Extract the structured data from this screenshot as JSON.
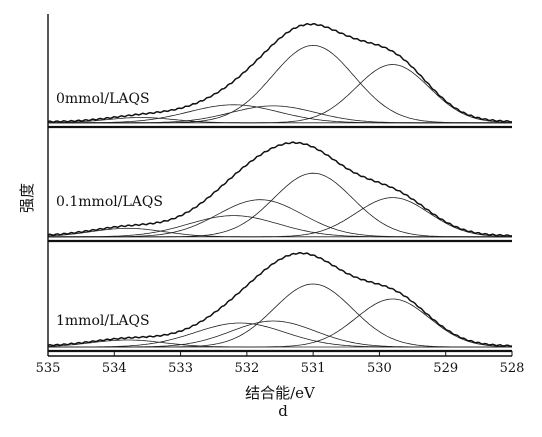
{
  "chart_data": {
    "type": "line",
    "x_unit": "eV",
    "xlabel": "结合能/eV",
    "ylabel": "强度",
    "caption": "d",
    "xlim": [
      535,
      528
    ],
    "x_ticks": [
      535,
      534,
      533,
      532,
      531,
      530,
      529,
      528
    ],
    "x_reversed": true,
    "panels": [
      {
        "label": "0mmol/LAQS",
        "series": [
          {
            "type": "envelope",
            "peaks": [
              {
                "center": 533.6,
                "height": 0.05,
                "fwhm": 1.2
              },
              {
                "center": 532.2,
                "height": 0.17,
                "fwhm": 1.6
              },
              {
                "center": 531.6,
                "height": 0.16,
                "fwhm": 1.5
              },
              {
                "center": 531.0,
                "height": 0.73,
                "fwhm": 1.45
              },
              {
                "center": 529.8,
                "height": 0.55,
                "fwhm": 1.3
              }
            ],
            "peak_value": 1.0
          },
          {
            "type": "component",
            "center": 533.6,
            "height": 0.05
          },
          {
            "type": "component",
            "center": 532.2,
            "height": 0.17
          },
          {
            "type": "component",
            "center": 531.6,
            "height": 0.16
          },
          {
            "type": "component",
            "center": 531.0,
            "height": 0.73
          },
          {
            "type": "component",
            "center": 529.8,
            "height": 0.55
          }
        ]
      },
      {
        "label": "0.1mmol/LAQS",
        "series": [
          {
            "type": "envelope",
            "peaks": [
              {
                "center": 533.8,
                "height": 0.08,
                "fwhm": 1.3
              },
              {
                "center": 532.2,
                "height": 0.2,
                "fwhm": 1.6
              },
              {
                "center": 531.8,
                "height": 0.35,
                "fwhm": 1.5
              },
              {
                "center": 531.0,
                "height": 0.6,
                "fwhm": 1.4
              },
              {
                "center": 529.8,
                "height": 0.37,
                "fwhm": 1.3
              }
            ],
            "peak_value": 1.0
          },
          {
            "type": "component",
            "center": 533.8,
            "height": 0.08
          },
          {
            "type": "component",
            "center": 532.2,
            "height": 0.2
          },
          {
            "type": "component",
            "center": 531.8,
            "height": 0.35
          },
          {
            "type": "component",
            "center": 531.0,
            "height": 0.6
          },
          {
            "type": "component",
            "center": 529.8,
            "height": 0.37
          }
        ]
      },
      {
        "label": "1mmol/LAQS",
        "series": [
          {
            "type": "envelope",
            "peaks": [
              {
                "center": 533.8,
                "height": 0.07,
                "fwhm": 1.3
              },
              {
                "center": 532.1,
                "height": 0.24,
                "fwhm": 1.6
              },
              {
                "center": 531.6,
                "height": 0.26,
                "fwhm": 1.5
              },
              {
                "center": 531.0,
                "height": 0.63,
                "fwhm": 1.4
              },
              {
                "center": 529.8,
                "height": 0.48,
                "fwhm": 1.3
              }
            ],
            "peak_value": 1.0
          },
          {
            "type": "component",
            "center": 533.8,
            "height": 0.07
          },
          {
            "type": "component",
            "center": 532.1,
            "height": 0.24
          },
          {
            "type": "component",
            "center": 531.6,
            "height": 0.26
          },
          {
            "type": "component",
            "center": 531.0,
            "height": 0.63
          },
          {
            "type": "component",
            "center": 529.8,
            "height": 0.48
          }
        ]
      }
    ],
    "grid": false,
    "legend": "none",
    "line_color": "#111111"
  }
}
